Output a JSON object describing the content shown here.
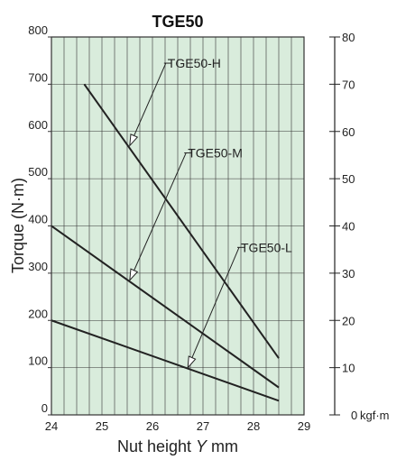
{
  "chart_data": {
    "type": "line",
    "title": "TGE50",
    "ylabel": "Torque (N·m)",
    "xlabel": {
      "main": "Nut height ",
      "var": "Y",
      "unit": " mm"
    },
    "y2_unit": "kgf·m",
    "xlim": [
      24,
      29
    ],
    "ylim": [
      0,
      800
    ],
    "y2lim": [
      0,
      80
    ],
    "x_ticks": [
      24,
      25,
      26,
      27,
      28,
      29
    ],
    "y_ticks": [
      0,
      100,
      200,
      300,
      400,
      500,
      600,
      700,
      800
    ],
    "y2_ticks": [
      0,
      10,
      20,
      30,
      40,
      50,
      60,
      70,
      80
    ],
    "grid": true,
    "colors": {
      "background": "#d9ecdc",
      "line": "#222222",
      "grid": "#333333"
    },
    "series": [
      {
        "name": "TGE50-H",
        "x": [
          24.65,
          28.5
        ],
        "y": [
          700,
          120
        ],
        "label_anchor": {
          "x": 25.55,
          "y": 570
        },
        "label_pos": {
          "x": 26.3,
          "y": 735
        }
      },
      {
        "name": "TGE50-M",
        "x": [
          24,
          28.5
        ],
        "y": [
          400,
          58
        ],
        "label_anchor": {
          "x": 25.55,
          "y": 285
        },
        "label_pos": {
          "x": 26.7,
          "y": 545
        }
      },
      {
        "name": "TGE50-L",
        "x": [
          24,
          28.5
        ],
        "y": [
          200,
          30
        ],
        "label_anchor": {
          "x": 26.7,
          "y": 100
        },
        "label_pos": {
          "x": 27.75,
          "y": 345
        }
      }
    ]
  }
}
